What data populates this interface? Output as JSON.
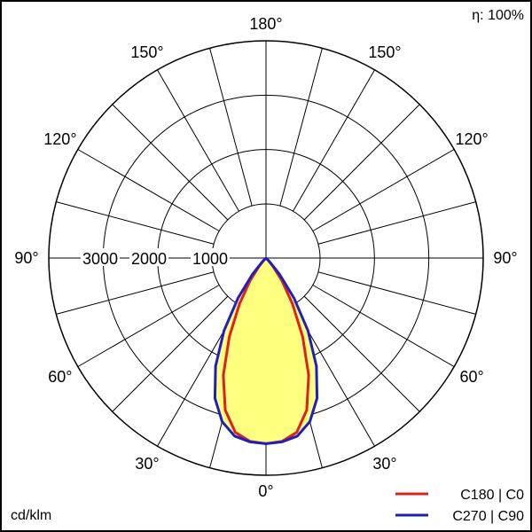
{
  "chart_data": {
    "type": "polar",
    "efficiency_label": "η: 100%",
    "unit_label": "cd/klm",
    "radial_max": 4000,
    "radial_rings": [
      1000,
      2000,
      3000,
      4000
    ],
    "radial_tick_labels": [
      "3000",
      "2000",
      "1000"
    ],
    "angle_labels": [
      {
        "text": "180°",
        "angle": 180,
        "side": "top"
      },
      {
        "text": "150°",
        "angle": 150,
        "side": "left"
      },
      {
        "text": "150°",
        "angle": 150,
        "side": "right"
      },
      {
        "text": "120°",
        "angle": 120,
        "side": "left"
      },
      {
        "text": "120°",
        "angle": 120,
        "side": "right"
      },
      {
        "text": "90°",
        "angle": 90,
        "side": "left"
      },
      {
        "text": "90°",
        "angle": 90,
        "side": "right"
      },
      {
        "text": "60°",
        "angle": 60,
        "side": "left"
      },
      {
        "text": "60°",
        "angle": 60,
        "side": "right"
      },
      {
        "text": "30°",
        "angle": 30,
        "side": "left"
      },
      {
        "text": "30°",
        "angle": 30,
        "side": "right"
      },
      {
        "text": "0°",
        "angle": 0,
        "side": "bottom"
      }
    ],
    "fill_color": "#ffff80",
    "series": [
      {
        "name": "C180 | C0",
        "color": "#e02020",
        "points": [
          [
            0,
            3420
          ],
          [
            5,
            3390
          ],
          [
            10,
            3260
          ],
          [
            15,
            2900
          ],
          [
            20,
            2300
          ],
          [
            25,
            1600
          ],
          [
            30,
            980
          ],
          [
            35,
            520
          ],
          [
            40,
            200
          ],
          [
            45,
            40
          ],
          [
            50,
            0
          ]
        ]
      },
      {
        "name": "C270 | C90",
        "color": "#1f1fbf",
        "points": [
          [
            0,
            3420
          ],
          [
            5,
            3400
          ],
          [
            10,
            3330
          ],
          [
            15,
            3120
          ],
          [
            20,
            2750
          ],
          [
            25,
            2200
          ],
          [
            30,
            1550
          ],
          [
            35,
            900
          ],
          [
            40,
            380
          ],
          [
            45,
            90
          ],
          [
            50,
            0
          ]
        ]
      }
    ]
  }
}
